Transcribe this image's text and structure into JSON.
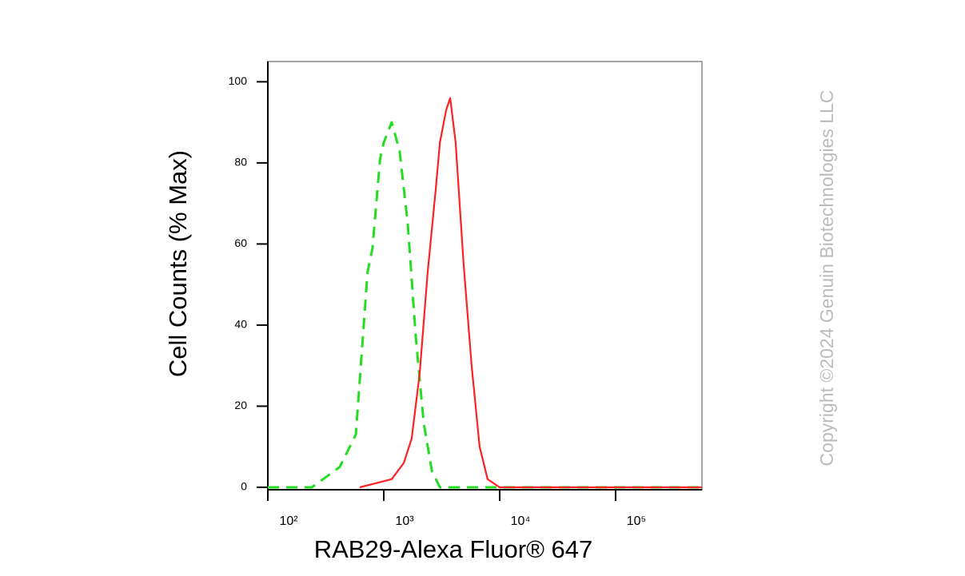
{
  "chart_data": {
    "type": "line",
    "xlabel": "RAB29-Alexa Fluor® 647",
    "ylabel": "Cell Counts (% Max)",
    "watermark": "Copyright ©2024 Genuin Biotechnologies LLC",
    "xscale": "log",
    "xlim": [
      100,
      556000
    ],
    "ylim": [
      -0.6,
      105
    ],
    "xticks": [
      {
        "value": 100,
        "label": "10²"
      },
      {
        "value": 1000,
        "label": "10³"
      },
      {
        "value": 10000,
        "label": "10⁴"
      },
      {
        "value": 100000,
        "label": "10⁵"
      }
    ],
    "yticks": [
      0,
      20,
      40,
      60,
      80,
      100
    ],
    "series": [
      {
        "color": "#22dd22",
        "dashed": true,
        "x": [
          100,
          240,
          417,
          575,
          724,
          800,
          930,
          1000,
          1170,
          1370,
          1610,
          1890,
          2210,
          2600,
          3050,
          556000
        ],
        "values": [
          0,
          0,
          5,
          13,
          53,
          59,
          81,
          85,
          90,
          83,
          65,
          37,
          16,
          4,
          0,
          0
        ]
      },
      {
        "color": "#ff2020",
        "dashed": false,
        "x": [
          620,
          850,
          1170,
          1490,
          1740,
          2040,
          2390,
          2800,
          3050,
          3450,
          3740,
          4170,
          4890,
          5730,
          6710,
          7870,
          10000,
          556000
        ],
        "values": [
          0,
          1,
          2,
          6,
          12,
          28,
          53,
          73,
          85,
          93,
          96,
          85,
          55,
          30,
          10,
          2,
          0,
          0
        ]
      }
    ]
  }
}
